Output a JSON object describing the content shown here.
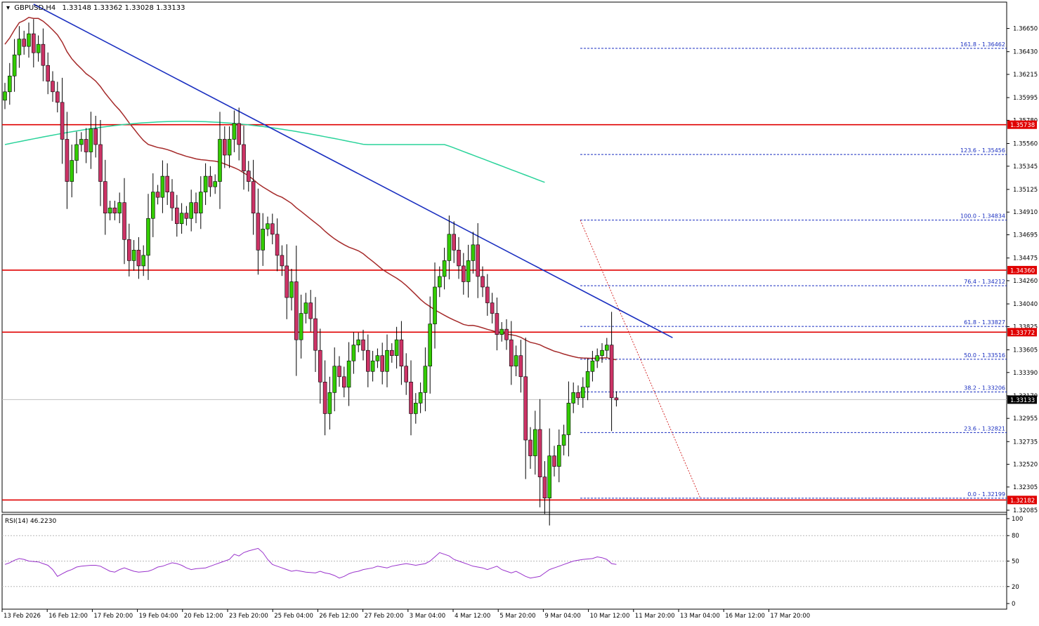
{
  "header": {
    "symbol": "GBPUSD,H4",
    "ohlc": "1.33148 1.33362 1.33028 1.33133"
  },
  "rsi_header": "RSI(14) 46.2230",
  "chart_data": [
    {
      "type": "candlestick",
      "ylim": [
        1.32085,
        1.3688
      ],
      "price_ticks": [
        "1.36650",
        "1.36430",
        "1.36215",
        "1.35995",
        "1.35780",
        "1.35560",
        "1.35345",
        "1.35125",
        "1.34910",
        "1.34695",
        "1.34475",
        "1.34260",
        "1.34040",
        "1.33825",
        "1.33605",
        "1.33390",
        "1.33170",
        "1.32955",
        "1.32735",
        "1.32520",
        "1.32305",
        "1.32085"
      ],
      "time_labels": [
        "13 Feb 2026",
        "16 Feb 12:00",
        "17 Feb 20:00",
        "19 Feb 04:00",
        "20 Feb 12:00",
        "23 Feb 20:00",
        "25 Feb 04:00",
        "26 Feb 12:00",
        "27 Feb 20:00",
        "3 Mar 04:00",
        "4 Mar 12:00",
        "5 Mar 20:00",
        "9 Mar 04:00",
        "10 Mar 12:00",
        "11 Mar 20:00",
        "13 Mar 04:00",
        "16 Mar 12:00",
        "17 Mar 20:00"
      ],
      "closes": [
        1.3605,
        1.362,
        1.364,
        1.3655,
        1.3648,
        1.366,
        1.3642,
        1.365,
        1.363,
        1.3615,
        1.3605,
        1.3595,
        1.356,
        1.352,
        1.354,
        1.3555,
        1.356,
        1.3548,
        1.357,
        1.3555,
        1.352,
        1.349,
        1.3495,
        1.349,
        1.35,
        1.3465,
        1.3445,
        1.3455,
        1.344,
        1.345,
        1.3485,
        1.351,
        1.3505,
        1.3525,
        1.351,
        1.3495,
        1.348,
        1.349,
        1.3485,
        1.35,
        1.349,
        1.351,
        1.3525,
        1.3515,
        1.352,
        1.356,
        1.3545,
        1.356,
        1.3575,
        1.3555,
        1.353,
        1.352,
        1.349,
        1.3455,
        1.3475,
        1.348,
        1.347,
        1.345,
        1.344,
        1.341,
        1.3425,
        1.337,
        1.3395,
        1.3405,
        1.339,
        1.336,
        1.333,
        1.33,
        1.332,
        1.3345,
        1.3335,
        1.3325,
        1.335,
        1.3365,
        1.337,
        1.336,
        1.334,
        1.335,
        1.3355,
        1.334,
        1.336,
        1.3355,
        1.337,
        1.3345,
        1.333,
        1.33,
        1.331,
        1.332,
        1.3345,
        1.3385,
        1.342,
        1.343,
        1.3445,
        1.347,
        1.3455,
        1.344,
        1.3425,
        1.3445,
        1.346,
        1.343,
        1.342,
        1.3405,
        1.3395,
        1.3375,
        1.338,
        1.337,
        1.3345,
        1.3355,
        1.3335,
        1.3275,
        1.326,
        1.3285,
        1.324,
        1.322,
        1.326,
        1.325,
        1.327,
        1.328,
        1.331,
        1.332,
        1.3315,
        1.3325,
        1.334,
        1.335,
        1.3355,
        1.336,
        1.3365,
        1.3315,
        1.3313
      ],
      "resistance_levels": [
        "1.35738",
        "1.34360",
        "1.33772",
        "1.32182"
      ],
      "current_price": "1.33133",
      "fibonacci": [
        {
          "label": "161.8 - 1.36462",
          "price": 1.36462
        },
        {
          "label": "123.6 - 1.35456",
          "price": 1.35456
        },
        {
          "label": "100.0 - 1.34834",
          "price": 1.34834
        },
        {
          "label": "76.4 - 1.34212",
          "price": 1.34212
        },
        {
          "label": "61.8 - 1.33827",
          "price": 1.33827
        },
        {
          "label": "50.0 - 1.33516",
          "price": 1.33516
        },
        {
          "label": "38.2 - 1.33206",
          "price": 1.33206
        },
        {
          "label": "23.6 - 1.32821",
          "price": 1.32821
        },
        {
          "label": "0.0 - 1.32199",
          "price": 1.32199
        }
      ],
      "colors": {
        "bull": "#33cc00",
        "bear": "#cc3366",
        "resistance": "#e00000",
        "trendline": "#1a2fc0",
        "ma_slow": "#a52a2a",
        "ma_long": "#2ad39a",
        "fib": "#1a2fc0"
      }
    },
    {
      "type": "line",
      "name": "RSI(14)",
      "ylim": [
        0,
        100
      ],
      "y_ticks": [
        "100",
        "80",
        "50",
        "20",
        "0"
      ],
      "values": [
        46,
        48,
        51,
        53,
        52,
        50,
        49,
        47,
        45,
        40,
        32,
        35,
        38,
        40,
        43,
        44,
        45,
        45,
        44,
        41,
        38,
        37,
        40,
        42,
        40,
        38,
        37,
        38,
        40,
        43,
        44,
        46,
        48,
        47,
        45,
        42,
        40,
        41,
        42,
        44,
        46,
        48,
        50,
        52,
        58,
        56,
        60,
        62,
        65,
        60,
        52,
        46,
        44,
        42,
        40,
        38,
        39,
        38,
        37,
        36,
        38,
        36,
        35,
        33,
        30,
        32,
        35,
        37,
        38,
        40,
        42,
        44,
        43,
        42,
        44,
        45,
        46,
        47,
        46,
        45,
        47,
        50,
        55,
        60,
        58,
        56,
        52,
        50,
        48,
        46,
        44,
        42,
        40,
        42,
        44,
        40,
        38,
        36,
        38,
        35,
        32,
        30,
        32,
        36,
        40,
        42,
        44,
        46,
        48,
        50,
        51,
        52,
        53,
        55,
        54,
        52,
        47,
        46
      ]
    }
  ]
}
